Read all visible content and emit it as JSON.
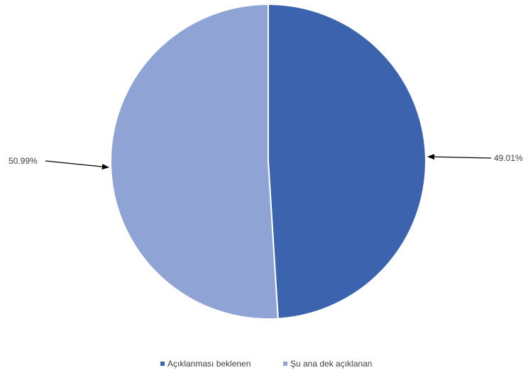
{
  "chart_data": {
    "type": "pie",
    "categories": [
      "Açıklanması beklenen",
      "Şu ana dek açıklanan"
    ],
    "values": [
      49.01,
      50.99
    ],
    "value_labels": [
      "49.01%",
      "50.99%"
    ],
    "colors": [
      "#3C64AE",
      "#8FA4D4"
    ],
    "title": "",
    "legend_position": "bottom"
  }
}
